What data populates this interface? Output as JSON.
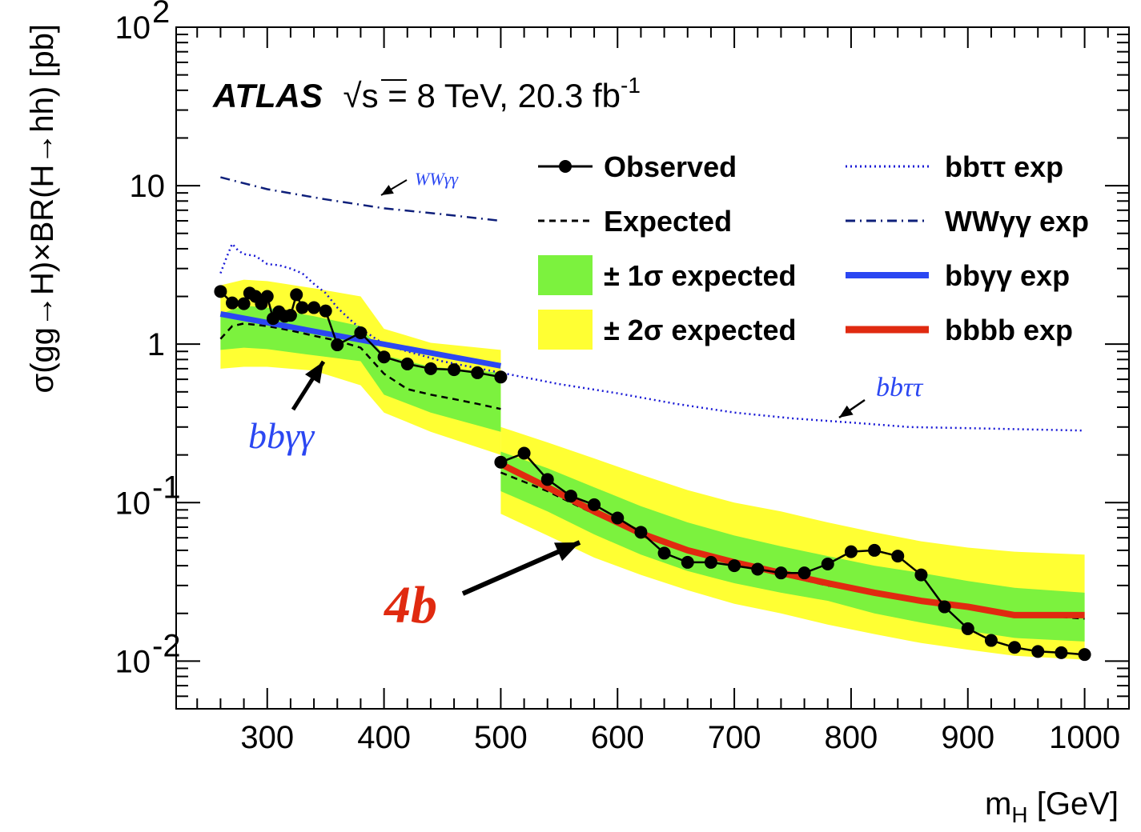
{
  "chart_data": {
    "type": "line",
    "xlabel": "m",
    "xlabel_sub": "H",
    "xlabel_unit": " [GeV]",
    "ylabel": "σ(gg→H)×BR(H→hh) [pb]",
    "xlim": [
      222,
      1038
    ],
    "ylim": [
      0.005,
      100
    ],
    "yscale": "log",
    "x_ticks": [
      300,
      400,
      500,
      600,
      700,
      800,
      900,
      1000
    ],
    "x_tick_labels": [
      "300",
      "400",
      "500",
      "600",
      "700",
      "800",
      "900",
      "1000"
    ],
    "y_ticks": [
      {
        "value": 100,
        "base": "10",
        "exp": "2"
      },
      {
        "value": 10,
        "base": "10",
        "exp": ""
      },
      {
        "value": 1,
        "base": "1",
        "exp": ""
      },
      {
        "value": 0.1,
        "base": "10",
        "exp": "-1"
      },
      {
        "value": 0.01,
        "base": "10",
        "exp": "-2"
      }
    ],
    "header": {
      "experiment": "ATLAS",
      "sqrt_symbol": "√",
      "energy_text": "s = 8 TeV, 20.3 fb",
      "lumi_exp": "-1"
    },
    "legend": {
      "placement": "top-right",
      "entries": [
        {
          "key": "observed",
          "label": "Observed"
        },
        {
          "key": "expected",
          "label": "Expected"
        },
        {
          "key": "band1",
          "label": "± 1σ expected"
        },
        {
          "key": "band2",
          "label": "± 2σ expected"
        },
        {
          "key": "bbtautau",
          "label": "bbττ exp"
        },
        {
          "key": "wwgg",
          "label": "WWγγ exp"
        },
        {
          "key": "bbgg",
          "label": "bbγγ exp"
        },
        {
          "key": "bbbb",
          "label": "bbbb exp"
        }
      ]
    },
    "annotations": [
      {
        "text": "WWγγ",
        "x": 350,
        "y": 11
      },
      {
        "text": "bbττ",
        "x": 850,
        "y": 0.47
      },
      {
        "text": "bbγγ",
        "x": 305,
        "y": 0.18
      },
      {
        "text": "4b",
        "x": 310,
        "y": 0.021
      }
    ],
    "colors": {
      "observed": "#000000",
      "expected": "#000000",
      "band1": "#7cf23e",
      "band2": "#ffff33",
      "bbtautau": "#1a1ad6",
      "wwgg": "#0e1f7a",
      "bbgg": "#2b47f2",
      "bbbb": "#e02a10",
      "annot_blue": "#2b47f2",
      "annot_red": "#e02a10"
    },
    "series": [
      {
        "name": "Observed",
        "segments": [
          {
            "x": [
              260,
              270,
              280,
              285,
              290,
              295,
              300,
              305,
              310,
              315,
              320,
              325,
              330,
              340,
              350,
              360,
              380,
              400,
              420,
              440,
              460,
              480,
              500
            ],
            "y": [
              2.15,
              1.82,
              1.8,
              2.1,
              2.0,
              1.8,
              2.0,
              1.45,
              1.6,
              1.5,
              1.52,
              2.05,
              1.7,
              1.7,
              1.62,
              0.99,
              1.18,
              0.83,
              0.75,
              0.7,
              0.69,
              0.66,
              0.62
            ]
          },
          {
            "x": [
              500,
              520,
              540,
              560,
              580,
              600,
              620,
              640,
              660,
              680,
              700,
              720,
              740,
              760,
              780,
              800,
              820,
              840,
              860,
              880,
              900,
              920,
              940,
              960,
              980,
              1000
            ],
            "y": [
              0.18,
              0.205,
              0.14,
              0.11,
              0.097,
              0.08,
              0.065,
              0.048,
              0.042,
              0.042,
              0.04,
              0.038,
              0.036,
              0.036,
              0.041,
              0.049,
              0.05,
              0.046,
              0.035,
              0.022,
              0.016,
              0.0135,
              0.0122,
              0.0115,
              0.0113,
              0.011
            ]
          }
        ]
      },
      {
        "name": "Expected",
        "segments": [
          {
            "x": [
              260,
              270,
              280,
              300,
              320,
              340,
              360,
              380,
              400,
              420,
              440,
              460,
              480,
              500
            ],
            "y": [
              1.08,
              1.3,
              1.35,
              1.3,
              1.22,
              1.13,
              1.05,
              0.95,
              0.65,
              0.52,
              0.48,
              0.45,
              0.42,
              0.39
            ]
          },
          {
            "x": [
              500,
              540,
              580,
              620,
              660,
              700,
              740,
              780,
              820,
              860,
              900,
              940,
              980,
              1000
            ],
            "y": [
              0.155,
              0.118,
              0.085,
              0.063,
              0.05,
              0.041,
              0.035,
              0.03,
              0.027,
              0.024,
              0.0215,
              0.02,
              0.019,
              0.0185
            ]
          }
        ]
      },
      {
        "name": "± 1σ expected",
        "segments": [
          {
            "x": [
              260,
              280,
              300,
              340,
              380,
              400,
              440,
              500
            ],
            "y_low": [
              0.92,
              0.95,
              0.93,
              0.85,
              0.78,
              0.48,
              0.37,
              0.28
            ],
            "y_high": [
              1.55,
              1.75,
              1.7,
              1.5,
              1.3,
              0.85,
              0.72,
              0.66
            ]
          },
          {
            "x": [
              500,
              540,
              580,
              620,
              660,
              700,
              740,
              780,
              820,
              860,
              900,
              940,
              1000
            ],
            "y_low": [
              0.118,
              0.088,
              0.063,
              0.047,
              0.037,
              0.031,
              0.027,
              0.024,
              0.02,
              0.0175,
              0.0155,
              0.014,
              0.0133
            ],
            "y_high": [
              0.21,
              0.165,
              0.125,
              0.095,
              0.075,
              0.062,
              0.053,
              0.046,
              0.04,
              0.036,
              0.032,
              0.029,
              0.027
            ]
          }
        ]
      },
      {
        "name": "± 2σ expected",
        "segments": [
          {
            "x": [
              260,
              280,
              300,
              340,
              380,
              400,
              440,
              500
            ],
            "y_low": [
              0.7,
              0.72,
              0.72,
              0.68,
              0.55,
              0.37,
              0.28,
              0.2
            ],
            "y_high": [
              2.35,
              2.55,
              2.5,
              2.25,
              2.0,
              1.25,
              1.02,
              0.92
            ]
          },
          {
            "x": [
              500,
              540,
              580,
              620,
              660,
              700,
              740,
              780,
              820,
              860,
              900,
              940,
              1000
            ],
            "y_low": [
              0.085,
              0.062,
              0.045,
              0.035,
              0.028,
              0.023,
              0.02,
              0.017,
              0.0148,
              0.013,
              0.0118,
              0.0108,
              0.0102
            ],
            "y_high": [
              0.3,
              0.24,
              0.19,
              0.15,
              0.12,
              0.1,
              0.088,
              0.075,
              0.065,
              0.057,
              0.052,
              0.049,
              0.047
            ]
          }
        ]
      },
      {
        "name": "bbττ exp",
        "segments": [
          {
            "x": [
              260,
              265,
              270,
              275,
              280,
              290,
              300,
              310,
              320,
              330,
              340,
              350,
              360,
              370,
              380,
              400,
              420,
              450,
              500,
              550,
              600,
              650,
              700,
              750,
              800,
              850,
              900,
              950,
              1000
            ],
            "y": [
              2.8,
              3.5,
              4.3,
              3.9,
              3.7,
              3.6,
              3.2,
              3.15,
              3.0,
              2.8,
              2.4,
              2.1,
              1.7,
              1.45,
              1.25,
              1.0,
              0.9,
              0.78,
              0.66,
              0.56,
              0.49,
              0.42,
              0.37,
              0.34,
              0.32,
              0.3,
              0.295,
              0.29,
              0.285
            ]
          }
        ]
      },
      {
        "name": "WWγγ exp",
        "segments": [
          {
            "x": [
              260,
              300,
              350,
              400,
              450,
              500
            ],
            "y": [
              11.3,
              9.5,
              8.2,
              7.2,
              6.6,
              6.0
            ]
          }
        ]
      },
      {
        "name": "bbγγ exp",
        "segments": [
          {
            "x": [
              260,
              500
            ],
            "y": [
              1.55,
              0.73
            ]
          }
        ]
      },
      {
        "name": "bbbb exp",
        "segments": [
          {
            "x": [
              500,
              540,
              580,
              620,
              660,
              700,
              740,
              780,
              820,
              860,
              900,
              940,
              980,
              1000
            ],
            "y": [
              0.175,
              0.125,
              0.088,
              0.064,
              0.05,
              0.042,
              0.036,
              0.031,
              0.027,
              0.024,
              0.022,
              0.0195,
              0.0195,
              0.0195
            ]
          }
        ]
      }
    ]
  }
}
